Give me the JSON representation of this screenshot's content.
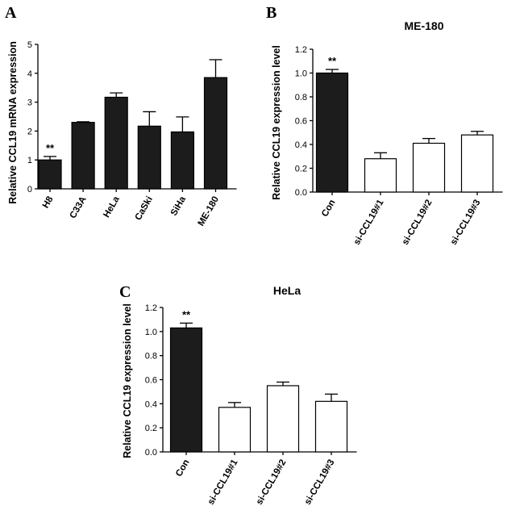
{
  "chart_data": [
    {
      "panel": "A",
      "type": "bar",
      "title": "",
      "ylabel": "Relative  CCL19 mRNA expression",
      "xlabel": "",
      "ylim": [
        0,
        5
      ],
      "yticks": [
        "0",
        "1",
        "2",
        "3",
        "4",
        "5"
      ],
      "categories": [
        "H8",
        "C33A",
        "HeLa",
        "CaSki",
        "SiHa",
        "ME-180"
      ],
      "values": [
        1.0,
        2.3,
        3.17,
        2.17,
        1.97,
        3.85
      ],
      "errors": [
        0.12,
        0.02,
        0.15,
        0.5,
        0.52,
        0.62
      ],
      "fills": [
        "#1c1c1c",
        "#1c1c1c",
        "#1c1c1c",
        "#1c1c1c",
        "#1c1c1c",
        "#1c1c1c"
      ],
      "annotations": [
        {
          "category": "H8",
          "text": "**"
        }
      ]
    },
    {
      "panel": "B",
      "type": "bar",
      "title": "ME-180",
      "ylabel": "Relative CCL19 expression level",
      "xlabel": "",
      "ylim": [
        0,
        1.2
      ],
      "yticks": [
        "0.0",
        "0.2",
        "0.4",
        "0.6",
        "0.8",
        "1.0",
        "1.2"
      ],
      "categories": [
        "Con",
        "si-CCL19#1",
        "si-CCL19#2",
        "si-CCL19#3"
      ],
      "values": [
        1.0,
        0.28,
        0.41,
        0.48
      ],
      "errors": [
        0.03,
        0.05,
        0.04,
        0.03
      ],
      "fills": [
        "#1c1c1c",
        "#ffffff",
        "#ffffff",
        "#ffffff"
      ],
      "annotations": [
        {
          "category": "Con",
          "text": "**"
        }
      ]
    },
    {
      "panel": "C",
      "type": "bar",
      "title": "HeLa",
      "ylabel": "Relative CCL19 expression level",
      "xlabel": "",
      "ylim": [
        0,
        1.2
      ],
      "yticks": [
        "0.0",
        "0.2",
        "0.4",
        "0.6",
        "0.8",
        "1.0",
        "1.2"
      ],
      "categories": [
        "Con",
        "si-CCL19#1",
        "si-CCL19#2",
        "si-CCL19#3"
      ],
      "values": [
        1.03,
        0.37,
        0.55,
        0.42
      ],
      "errors": [
        0.04,
        0.04,
        0.03,
        0.06
      ],
      "fills": [
        "#1c1c1c",
        "#ffffff",
        "#ffffff",
        "#ffffff"
      ],
      "annotations": [
        {
          "category": "Con",
          "text": "**"
        }
      ]
    }
  ]
}
